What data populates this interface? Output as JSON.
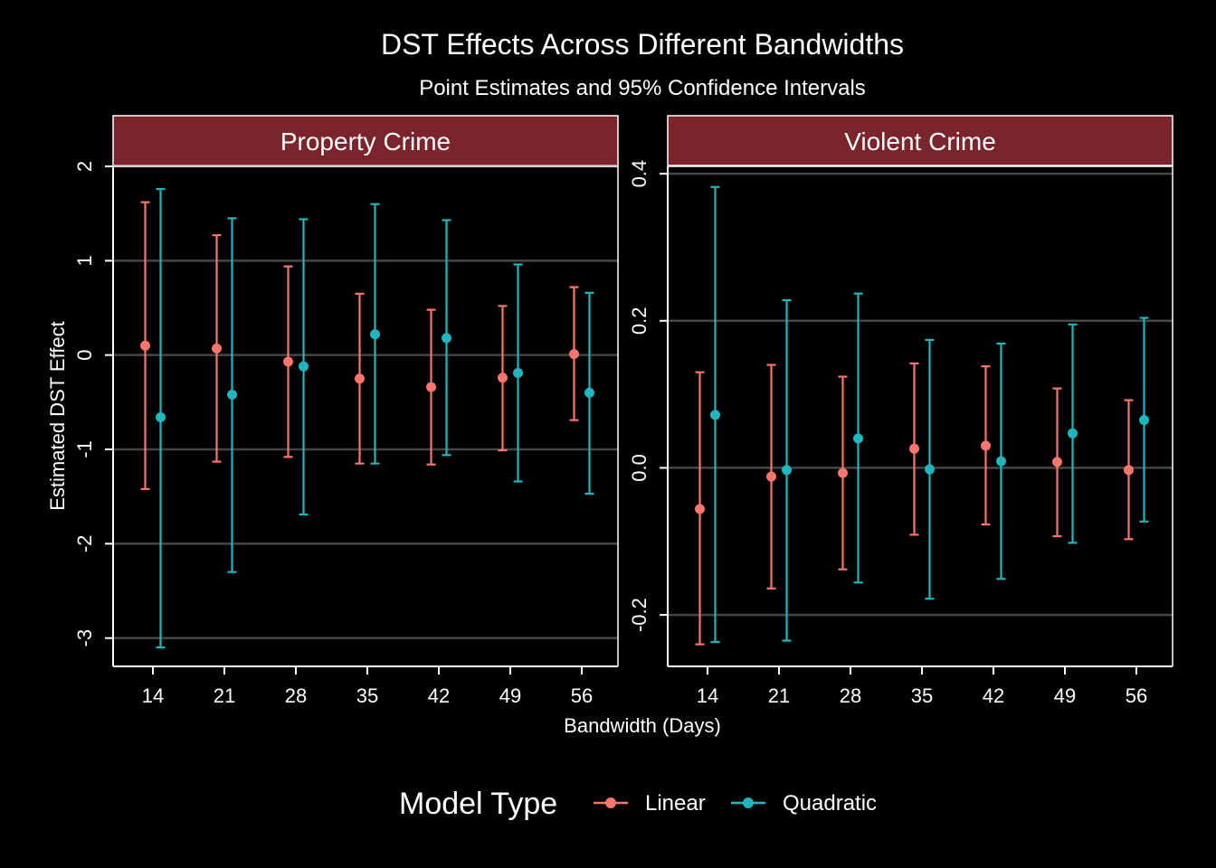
{
  "colors": {
    "background": "#000000",
    "strip_fill": "#7b242c",
    "linear": "#f8766d",
    "quadratic": "#1fb7bf",
    "grid": "#474747",
    "panel_border": "#ffffff"
  },
  "chart_data": {
    "type": "errorbar",
    "title": "DST Effects Across Different Bandwidths",
    "subtitle": "Point Estimates and 95% Confidence Intervals",
    "xlabel": "Bandwidth (Days)",
    "ylabel": "Estimated DST Effect",
    "categories": [
      "14",
      "21",
      "28",
      "35",
      "42",
      "49",
      "56"
    ],
    "grid": true,
    "legend": {
      "title": "Model Type",
      "position": "bottom",
      "entries": [
        "Linear",
        "Quadratic"
      ]
    },
    "panels": [
      {
        "name": "Property Crime",
        "ylim": [
          -3.3,
          2.0
        ],
        "yticks": [
          -3,
          -2,
          -1,
          0,
          1,
          2
        ],
        "ytick_labels": [
          "-3",
          "-2",
          "-1",
          "0",
          "1",
          "2"
        ],
        "series": [
          {
            "name": "Linear",
            "estimates": [
              0.1,
              0.07,
              -0.07,
              -0.25,
              -0.34,
              -0.24,
              0.01
            ],
            "lower": [
              -1.42,
              -1.13,
              -1.08,
              -1.15,
              -1.16,
              -1.01,
              -0.69
            ],
            "upper": [
              1.62,
              1.27,
              0.94,
              0.65,
              0.48,
              0.52,
              0.72
            ]
          },
          {
            "name": "Quadratic",
            "estimates": [
              -0.66,
              -0.42,
              -0.12,
              0.22,
              0.18,
              -0.19,
              -0.4
            ],
            "lower": [
              -3.1,
              -2.3,
              -1.69,
              -1.15,
              -1.06,
              -1.34,
              -1.47
            ],
            "upper": [
              1.76,
              1.45,
              1.44,
              1.6,
              1.43,
              0.96,
              0.66
            ]
          }
        ]
      },
      {
        "name": "Violent Crime",
        "ylim": [
          -0.27,
          0.41
        ],
        "yticks": [
          -0.2,
          0.0,
          0.2,
          0.4
        ],
        "ytick_labels": [
          "-0.2",
          "0.0",
          "0.2",
          "0.4"
        ],
        "series": [
          {
            "name": "Linear",
            "estimates": [
              -0.056,
              -0.012,
              -0.007,
              0.026,
              0.03,
              0.008,
              -0.003
            ],
            "lower": [
              -0.24,
              -0.164,
              -0.138,
              -0.091,
              -0.077,
              -0.093,
              -0.097
            ],
            "upper": [
              0.13,
              0.14,
              0.124,
              0.142,
              0.138,
              0.108,
              0.092
            ]
          },
          {
            "name": "Quadratic",
            "estimates": [
              0.072,
              -0.003,
              0.04,
              -0.002,
              0.009,
              0.047,
              0.065
            ],
            "lower": [
              -0.237,
              -0.235,
              -0.156,
              -0.178,
              -0.151,
              -0.102,
              -0.073
            ],
            "upper": [
              0.382,
              0.228,
              0.237,
              0.174,
              0.169,
              0.195,
              0.204
            ]
          }
        ]
      }
    ]
  }
}
